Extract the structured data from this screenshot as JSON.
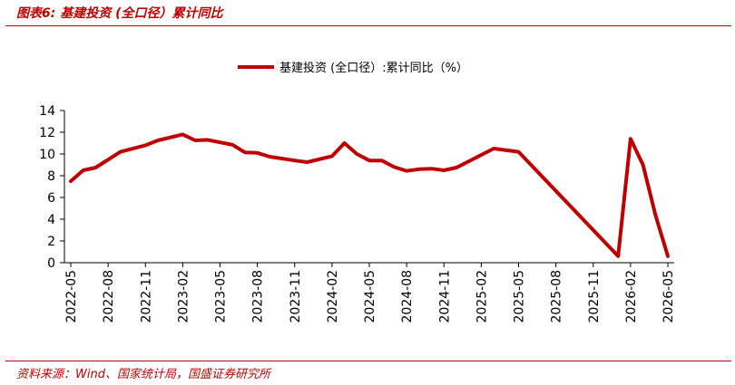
{
  "figure": {
    "title": "图表6:  基建投资 (全口径）累计同比",
    "source": "资料来源：Wind、国家统计局，国盛证券研究所"
  },
  "colors": {
    "accent": "#c00000",
    "axis": "#000000"
  },
  "chart_data": {
    "type": "line",
    "title": "",
    "xlabel": "",
    "ylabel": "",
    "ylim": [
      0,
      14
    ],
    "yticks": [
      0,
      2,
      4,
      6,
      8,
      10,
      12,
      14
    ],
    "grid": false,
    "legend_position": "top-center",
    "x_tick_labels": [
      "2022-05",
      "2022-08",
      "2022-11",
      "2023-02",
      "2023-05",
      "2023-08",
      "2023-11",
      "2024-02",
      "2024-05",
      "2024-08",
      "2024-11",
      "2025-02",
      "2025-05",
      "2025-08",
      "2025-11",
      "2026-02",
      "2026-05"
    ],
    "x": [
      "2022-05",
      "2022-06",
      "2022-07",
      "2022-08",
      "2022-09",
      "2022-10",
      "2022-11",
      "2022-12",
      "2023-01",
      "2023-02",
      "2023-03",
      "2023-04",
      "2023-05",
      "2023-06",
      "2023-07",
      "2023-08",
      "2023-09",
      "2023-10",
      "2023-11",
      "2023-12",
      "2024-01",
      "2024-02",
      "2024-03",
      "2024-04",
      "2024-05",
      "2024-06",
      "2024-07",
      "2024-08",
      "2024-09",
      "2024-10",
      "2024-11",
      "2024-12",
      "2025-01",
      "2025-02",
      "2025-03",
      "2025-04",
      "2025-05",
      "2025-06",
      "2025-07",
      "2025-08",
      "2025-09",
      "2025-10",
      "2025-11",
      "2025-12",
      "2026-01",
      "2026-02",
      "2026-03",
      "2026-04",
      "2026-05"
    ],
    "series": [
      {
        "name": "基建投资 (全口径）:累计同比（%）",
        "color": "#c00000",
        "values": [
          7.5,
          8.5,
          8.75,
          null,
          10.2,
          null,
          10.8,
          11.25,
          null,
          11.8,
          11.25,
          11.3,
          null,
          10.85,
          10.15,
          10.1,
          9.75,
          null,
          9.4,
          9.25,
          null,
          9.8,
          11.0,
          10.0,
          9.4,
          9.4,
          8.8,
          8.45,
          8.6,
          8.65,
          8.5,
          8.75,
          null,
          null,
          10.5,
          null,
          10.2,
          9.0,
          null,
          null,
          null,
          null,
          3.0,
          null,
          0.6,
          11.4,
          9.0,
          4.4,
          0.6
        ]
      }
    ]
  }
}
